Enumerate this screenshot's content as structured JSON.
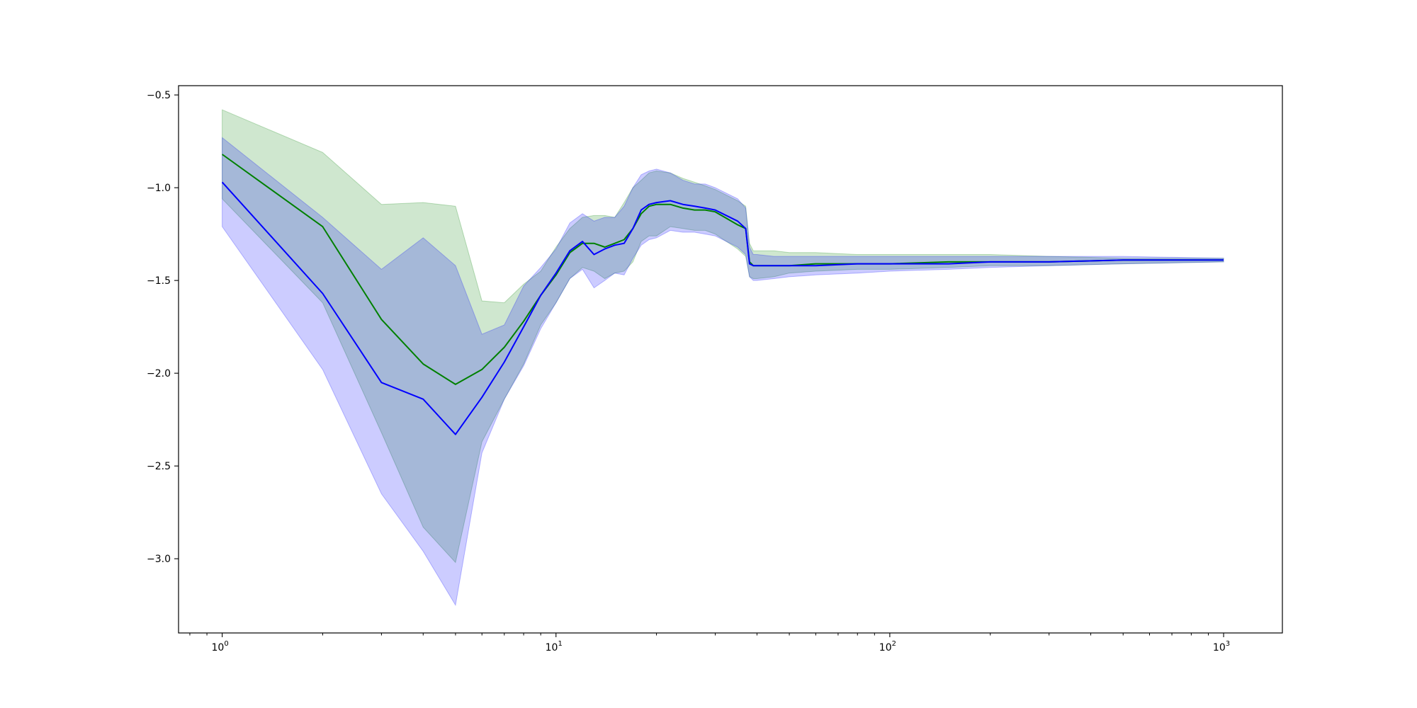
{
  "chart_data": {
    "type": "area",
    "title": "",
    "xlabel": "",
    "ylabel": "",
    "x_scale": "log",
    "xlim": [
      0.74,
      1500
    ],
    "ylim": [
      -3.4,
      -0.45
    ],
    "grid": false,
    "legend": "none",
    "x_ticks": [
      {
        "value": 1,
        "base": "10",
        "exp": "0"
      },
      {
        "value": 10,
        "base": "10",
        "exp": "1"
      },
      {
        "value": 100,
        "base": "10",
        "exp": "2"
      },
      {
        "value": 1000,
        "base": "10",
        "exp": "3"
      }
    ],
    "y_ticks": [
      {
        "value": -0.5,
        "label": "−0.5"
      },
      {
        "value": -1.0,
        "label": "−1.0"
      },
      {
        "value": -1.5,
        "label": "−1.5"
      },
      {
        "value": -2.0,
        "label": "−2.0"
      },
      {
        "value": -2.5,
        "label": "−2.5"
      },
      {
        "value": -3.0,
        "label": "−3.0"
      }
    ],
    "series": [
      {
        "color": "#008000",
        "band_color": "#008000",
        "band_opacity": 0.19,
        "x": [
          1,
          2,
          3,
          4,
          5,
          6,
          7,
          8,
          9,
          10,
          11,
          12,
          13,
          14,
          15,
          16,
          17,
          18,
          19,
          20,
          22,
          24,
          26,
          28,
          30,
          35,
          37,
          38,
          39,
          40,
          45,
          50,
          60,
          80,
          100,
          150,
          200,
          300,
          500,
          1000
        ],
        "y": [
          -0.82,
          -1.21,
          -1.71,
          -1.95,
          -2.06,
          -1.98,
          -1.86,
          -1.72,
          -1.58,
          -1.47,
          -1.35,
          -1.3,
          -1.3,
          -1.32,
          -1.3,
          -1.28,
          -1.22,
          -1.14,
          -1.1,
          -1.09,
          -1.09,
          -1.11,
          -1.12,
          -1.12,
          -1.13,
          -1.2,
          -1.22,
          -1.4,
          -1.42,
          -1.42,
          -1.42,
          -1.42,
          -1.41,
          -1.41,
          -1.41,
          -1.4,
          -1.4,
          -1.4,
          -1.39,
          -1.39
        ],
        "upper": [
          -0.58,
          -0.81,
          -1.09,
          -1.08,
          -1.1,
          -1.61,
          -1.62,
          -1.52,
          -1.45,
          -1.32,
          -1.22,
          -1.16,
          -1.15,
          -1.15,
          -1.16,
          -1.08,
          -1.0,
          -0.96,
          -0.92,
          -0.91,
          -0.92,
          -0.95,
          -0.97,
          -0.99,
          -1.01,
          -1.07,
          -1.1,
          -1.3,
          -1.34,
          -1.34,
          -1.34,
          -1.35,
          -1.35,
          -1.36,
          -1.36,
          -1.36,
          -1.36,
          -1.37,
          -1.38,
          -1.38
        ],
        "lower": [
          -1.06,
          -1.62,
          -2.32,
          -2.83,
          -3.02,
          -2.37,
          -2.14,
          -1.95,
          -1.74,
          -1.62,
          -1.49,
          -1.43,
          -1.45,
          -1.49,
          -1.46,
          -1.45,
          -1.4,
          -1.29,
          -1.26,
          -1.26,
          -1.21,
          -1.22,
          -1.23,
          -1.23,
          -1.25,
          -1.33,
          -1.37,
          -1.48,
          -1.49,
          -1.49,
          -1.48,
          -1.46,
          -1.45,
          -1.44,
          -1.44,
          -1.43,
          -1.42,
          -1.42,
          -1.41,
          -1.4
        ]
      },
      {
        "color": "#0000ff",
        "band_color": "#0000ff",
        "band_opacity": 0.2,
        "x": [
          1,
          2,
          3,
          4,
          5,
          6,
          7,
          8,
          9,
          10,
          11,
          12,
          13,
          14,
          15,
          16,
          17,
          18,
          19,
          20,
          22,
          24,
          26,
          28,
          30,
          35,
          37,
          38,
          39,
          40,
          45,
          50,
          60,
          80,
          100,
          150,
          200,
          300,
          500,
          1000
        ],
        "y": [
          -0.97,
          -1.57,
          -2.05,
          -2.14,
          -2.33,
          -2.13,
          -1.94,
          -1.75,
          -1.58,
          -1.46,
          -1.34,
          -1.29,
          -1.36,
          -1.33,
          -1.31,
          -1.3,
          -1.22,
          -1.12,
          -1.09,
          -1.08,
          -1.07,
          -1.09,
          -1.1,
          -1.11,
          -1.12,
          -1.18,
          -1.22,
          -1.41,
          -1.42,
          -1.42,
          -1.42,
          -1.42,
          -1.42,
          -1.41,
          -1.41,
          -1.41,
          -1.4,
          -1.4,
          -1.39,
          -1.39
        ],
        "upper": [
          -0.73,
          -1.16,
          -1.44,
          -1.27,
          -1.42,
          -1.79,
          -1.74,
          -1.53,
          -1.43,
          -1.33,
          -1.19,
          -1.14,
          -1.18,
          -1.16,
          -1.16,
          -1.1,
          -1.0,
          -0.93,
          -0.91,
          -0.9,
          -0.92,
          -0.96,
          -0.98,
          -0.98,
          -1.0,
          -1.06,
          -1.11,
          -1.32,
          -1.36,
          -1.36,
          -1.37,
          -1.37,
          -1.37,
          -1.37,
          -1.37,
          -1.37,
          -1.37,
          -1.37,
          -1.37,
          -1.38
        ],
        "lower": [
          -1.21,
          -1.98,
          -2.65,
          -2.96,
          -3.25,
          -2.43,
          -2.14,
          -1.96,
          -1.76,
          -1.62,
          -1.49,
          -1.44,
          -1.54,
          -1.5,
          -1.46,
          -1.47,
          -1.38,
          -1.31,
          -1.28,
          -1.27,
          -1.23,
          -1.24,
          -1.24,
          -1.25,
          -1.26,
          -1.32,
          -1.36,
          -1.48,
          -1.5,
          -1.5,
          -1.49,
          -1.48,
          -1.47,
          -1.46,
          -1.45,
          -1.44,
          -1.43,
          -1.42,
          -1.41,
          -1.4
        ]
      }
    ]
  }
}
